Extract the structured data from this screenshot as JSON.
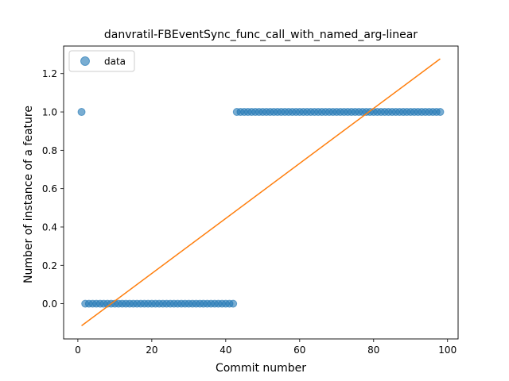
{
  "chart_data": {
    "type": "scatter",
    "title": "danvratil-FBEventSync_func_call_with_named_arg-linear",
    "xlabel": "Commit number",
    "ylabel": "Number of instance of a feature",
    "xlim": [
      -3.85,
      102.85
    ],
    "ylim": [
      -0.1838,
      1.3438
    ],
    "xticks": [
      0,
      20,
      40,
      60,
      80,
      100
    ],
    "yticks": [
      0.0,
      0.2,
      0.4,
      0.6,
      0.8,
      1.0,
      1.2
    ],
    "xtick_labels": [
      "0",
      "20",
      "40",
      "60",
      "80",
      "100"
    ],
    "ytick_labels": [
      "0.0",
      "0.2",
      "0.4",
      "0.6",
      "0.8",
      "1.0",
      "1.2"
    ],
    "legend": {
      "position": "top-left",
      "entries": [
        "data"
      ]
    },
    "grid": false,
    "series": [
      {
        "name": "data",
        "kind": "scatter",
        "color": "#1f77b4",
        "alpha": 0.6,
        "x": [
          1,
          2,
          3,
          4,
          5,
          6,
          7,
          8,
          9,
          10,
          11,
          12,
          13,
          14,
          15,
          16,
          17,
          18,
          19,
          20,
          21,
          22,
          23,
          24,
          25,
          26,
          27,
          28,
          29,
          30,
          31,
          32,
          33,
          34,
          35,
          36,
          37,
          38,
          39,
          40,
          41,
          42,
          43,
          44,
          45,
          46,
          47,
          48,
          49,
          50,
          51,
          52,
          53,
          54,
          55,
          56,
          57,
          58,
          59,
          60,
          61,
          62,
          63,
          64,
          65,
          66,
          67,
          68,
          69,
          70,
          71,
          72,
          73,
          74,
          75,
          76,
          77,
          78,
          79,
          80,
          81,
          82,
          83,
          84,
          85,
          86,
          87,
          88,
          89,
          90,
          91,
          92,
          93,
          94,
          95,
          96,
          97,
          98
        ],
        "y": [
          1,
          0,
          0,
          0,
          0,
          0,
          0,
          0,
          0,
          0,
          0,
          0,
          0,
          0,
          0,
          0,
          0,
          0,
          0,
          0,
          0,
          0,
          0,
          0,
          0,
          0,
          0,
          0,
          0,
          0,
          0,
          0,
          0,
          0,
          0,
          0,
          0,
          0,
          0,
          0,
          0,
          0,
          1,
          1,
          1,
          1,
          1,
          1,
          1,
          1,
          1,
          1,
          1,
          1,
          1,
          1,
          1,
          1,
          1,
          1,
          1,
          1,
          1,
          1,
          1,
          1,
          1,
          1,
          1,
          1,
          1,
          1,
          1,
          1,
          1,
          1,
          1,
          1,
          1,
          1,
          1,
          1,
          1,
          1,
          1,
          1,
          1,
          1,
          1,
          1,
          1,
          1,
          1,
          1,
          1,
          1,
          1,
          1
        ]
      },
      {
        "kind": "line",
        "color": "#ff7f0e",
        "x": [
          1,
          98
        ],
        "y": [
          -0.115,
          1.277
        ]
      }
    ]
  }
}
